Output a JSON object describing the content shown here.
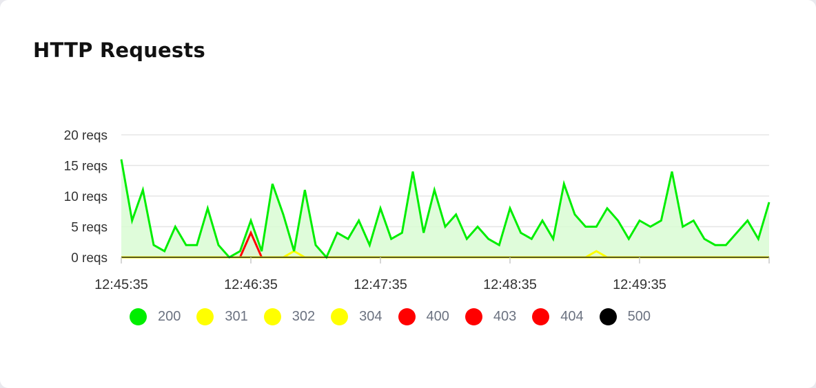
{
  "card": {
    "title": "HTTP Requests"
  },
  "chart_data": {
    "type": "area",
    "title": "HTTP Requests",
    "xlabel": "",
    "ylabel": "",
    "ylim": [
      0,
      20
    ],
    "yticks": [
      "0 reqs",
      "5 reqs",
      "10 reqs",
      "15 reqs",
      "20 reqs"
    ],
    "ytick_values": [
      0,
      5,
      10,
      15,
      20
    ],
    "xticks": [
      "12:45:35",
      "12:46:35",
      "12:47:35",
      "12:48:35",
      "12:49:35"
    ],
    "grid": true,
    "legend_position": "bottom",
    "x_step_seconds": 5,
    "series": [
      {
        "name": "200",
        "color": "#00ee00",
        "fill": "#d9fbd4",
        "values": [
          16,
          6,
          11,
          2,
          1,
          5,
          2,
          2,
          8,
          2,
          0,
          1,
          6,
          1,
          12,
          7,
          1,
          11,
          2,
          0,
          4,
          3,
          6,
          2,
          8,
          3,
          4,
          14,
          4,
          11,
          5,
          7,
          3,
          5,
          3,
          2,
          8,
          4,
          3,
          6,
          3,
          12,
          7,
          5,
          5,
          8,
          6,
          3,
          6,
          5,
          6,
          14,
          5,
          6,
          3,
          2,
          2,
          4,
          6,
          3,
          9
        ]
      },
      {
        "name": "301",
        "color": "#ffff00",
        "fill": "#fffbd0",
        "values": [
          0,
          0,
          0,
          0,
          0,
          0,
          0,
          0,
          0,
          0,
          0,
          0,
          0,
          0,
          0,
          0,
          0,
          0,
          0,
          0,
          0,
          0,
          0,
          0,
          0,
          0,
          0,
          0,
          0,
          0,
          0,
          0,
          0,
          0,
          0,
          0,
          0,
          0,
          0,
          0,
          0,
          0,
          0,
          0,
          0,
          0,
          0,
          0,
          0,
          0,
          0,
          0,
          0,
          0,
          0,
          0,
          0,
          0,
          0,
          0,
          0
        ]
      },
      {
        "name": "302",
        "color": "#ffff00",
        "fill": "#fffbd0",
        "values": [
          0,
          0,
          0,
          0,
          0,
          0,
          0,
          0,
          0,
          0,
          0,
          0,
          0,
          0,
          0,
          0,
          1,
          0,
          0,
          0,
          0,
          0,
          0,
          0,
          0,
          0,
          0,
          0,
          0,
          0,
          0,
          0,
          0,
          0,
          0,
          0,
          0,
          0,
          0,
          0,
          0,
          0,
          0,
          0,
          0,
          0,
          0,
          0,
          0,
          0,
          0,
          0,
          0,
          0,
          0,
          0,
          0,
          0,
          0,
          0,
          0
        ]
      },
      {
        "name": "304",
        "color": "#ffff00",
        "fill": "#fffbd0",
        "values": [
          0,
          0,
          0,
          0,
          0,
          0,
          0,
          0,
          0,
          0,
          0,
          0,
          0,
          0,
          0,
          0,
          0,
          0,
          0,
          0,
          0,
          0,
          0,
          0,
          0,
          0,
          0,
          0,
          0,
          0,
          0,
          0,
          0,
          0,
          0,
          0,
          0,
          0,
          0,
          0,
          0,
          0,
          0,
          0,
          1,
          0,
          0,
          0,
          0,
          0,
          0,
          0,
          0,
          0,
          0,
          0,
          0,
          0,
          0,
          0,
          0
        ]
      },
      {
        "name": "400",
        "color": "#ff0000",
        "fill": "#f4c9bd",
        "values": [
          0,
          0,
          0,
          0,
          0,
          0,
          0,
          0,
          0,
          0,
          0,
          0,
          0,
          0,
          0,
          0,
          0,
          0,
          0,
          0,
          0,
          0,
          0,
          0,
          0,
          0,
          0,
          0,
          0,
          0,
          0,
          0,
          0,
          0,
          0,
          0,
          0,
          0,
          0,
          0,
          0,
          0,
          0,
          0,
          0,
          0,
          0,
          0,
          0,
          0,
          0,
          0,
          0,
          0,
          0,
          0,
          0,
          0,
          0,
          0,
          0
        ]
      },
      {
        "name": "403",
        "color": "#ff0000",
        "fill": "#f4c9bd",
        "values": [
          0,
          0,
          0,
          0,
          0,
          0,
          0,
          0,
          0,
          0,
          0,
          0,
          0,
          0,
          0,
          0,
          0,
          0,
          0,
          0,
          0,
          0,
          0,
          0,
          0,
          0,
          0,
          0,
          0,
          0,
          0,
          0,
          0,
          0,
          0,
          0,
          0,
          0,
          0,
          0,
          0,
          0,
          0,
          0,
          0,
          0,
          0,
          0,
          0,
          0,
          0,
          0,
          0,
          0,
          0,
          0,
          0,
          0,
          0,
          0,
          0
        ]
      },
      {
        "name": "404",
        "color": "#ff0000",
        "fill": "#f4c9bd",
        "values": [
          0,
          0,
          0,
          0,
          0,
          0,
          0,
          0,
          0,
          0,
          0,
          0,
          4,
          0,
          0,
          0,
          0,
          0,
          0,
          0,
          0,
          0,
          0,
          0,
          0,
          0,
          0,
          0,
          0,
          0,
          0,
          0,
          0,
          0,
          0,
          0,
          0,
          0,
          0,
          0,
          0,
          0,
          0,
          0,
          0,
          0,
          0,
          0,
          0,
          0,
          0,
          0,
          0,
          0,
          0,
          0,
          0,
          0,
          0,
          0,
          0
        ]
      },
      {
        "name": "500",
        "color": "#000000",
        "fill": "#dddddd",
        "values": [
          0,
          0,
          0,
          0,
          0,
          0,
          0,
          0,
          0,
          0,
          0,
          0,
          0,
          0,
          0,
          0,
          0,
          0,
          0,
          0,
          0,
          0,
          0,
          0,
          0,
          0,
          0,
          0,
          0,
          0,
          0,
          0,
          0,
          0,
          0,
          0,
          0,
          0,
          0,
          0,
          0,
          0,
          0,
          0,
          0,
          0,
          0,
          0,
          0,
          0,
          0,
          0,
          0,
          0,
          0,
          0,
          0,
          0,
          0,
          0,
          0
        ]
      }
    ]
  }
}
